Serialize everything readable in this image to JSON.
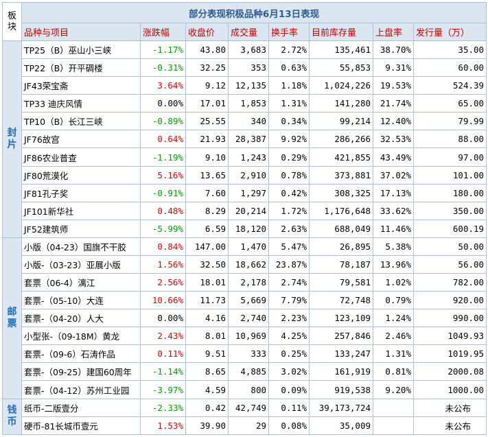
{
  "title": "部分表现积极品种6月13日表现",
  "corner_label": "板块",
  "headers": [
    "品种与项目",
    "涨跌幅",
    "收盘价",
    "成交量",
    "换手率",
    "目前库存量",
    "上盘率",
    "发行量（万）"
  ],
  "sections": [
    {
      "name": "封片",
      "rows": [
        {
          "name": "TP25（B）巫山小三峡",
          "change": "-1.17%",
          "trend": "down",
          "close": "43.80",
          "volume": "3,683",
          "turnover": "2.72%",
          "stock": "135,461",
          "rate": "38.70%",
          "issue": "35.00"
        },
        {
          "name": "TP22（B）开平碉楼",
          "change": "-0.31%",
          "trend": "down",
          "close": "32.25",
          "volume": "353",
          "turnover": "0.63%",
          "stock": "55,853",
          "rate": "9.31%",
          "issue": "60.00"
        },
        {
          "name": "JF43荣宝斋",
          "change": "3.64%",
          "trend": "up",
          "close": "9.12",
          "volume": "12,135",
          "turnover": "1.18%",
          "stock": "1,024,226",
          "rate": "19.53%",
          "issue": "524.39"
        },
        {
          "name": "TP33 迪庆风情",
          "change": "0.00%",
          "trend": "flat",
          "close": "17.01",
          "volume": "1,853",
          "turnover": "1.31%",
          "stock": "141,280",
          "rate": "21.74%",
          "issue": "65.00"
        },
        {
          "name": "TP10（B）长江三峡",
          "change": "-0.89%",
          "trend": "down",
          "close": "25.55",
          "volume": "340",
          "turnover": "0.34%",
          "stock": "99,214",
          "rate": "12.40%",
          "issue": "79.99"
        },
        {
          "name": "JF76故宫",
          "change": "0.64%",
          "trend": "up",
          "close": "21.93",
          "volume": "28,387",
          "turnover": "9.92%",
          "stock": "286,266",
          "rate": "32.53%",
          "issue": "88.00"
        },
        {
          "name": "JF86农业普查",
          "change": "-1.19%",
          "trend": "down",
          "close": "9.10",
          "volume": "1,243",
          "turnover": "0.29%",
          "stock": "421,855",
          "rate": "43.49%",
          "issue": "97.00"
        },
        {
          "name": "JF80荒漠化",
          "change": "5.16%",
          "trend": "up",
          "close": "13.65",
          "volume": "2,910",
          "turnover": "0.78%",
          "stock": "373,881",
          "rate": "37.02%",
          "issue": "101.00"
        },
        {
          "name": "JF81孔子奖",
          "change": "-0.91%",
          "trend": "down",
          "close": "7.60",
          "volume": "1,297",
          "turnover": "0.42%",
          "stock": "308,325",
          "rate": "17.13%",
          "issue": "180.00"
        },
        {
          "name": "JF101新华社",
          "change": "0.48%",
          "trend": "up",
          "close": "8.29",
          "volume": "20,214",
          "turnover": "1.72%",
          "stock": "1,176,648",
          "rate": "33.62%",
          "issue": "350.00"
        },
        {
          "name": "JF52建筑师",
          "change": "-5.99%",
          "trend": "down",
          "close": "6.59",
          "volume": "18,120",
          "turnover": "2.63%",
          "stock": "688,049",
          "rate": "11.46%",
          "issue": "600.19"
        }
      ]
    },
    {
      "name": "邮票",
      "rows": [
        {
          "name": "小版（04-23）国旗不干胶",
          "change": "0.84%",
          "trend": "up",
          "close": "147.00",
          "volume": "1,470",
          "turnover": "5.47%",
          "stock": "26,895",
          "rate": "5.38%",
          "issue": "50.00"
        },
        {
          "name": "小版-（03-23）亚展小版",
          "change": "1.56%",
          "trend": "up",
          "close": "32.50",
          "volume": "18,662",
          "turnover": "23.87%",
          "stock": "78,187",
          "rate": "13.96%",
          "issue": "56.00"
        },
        {
          "name": "套票（06-4）漓江",
          "change": "2.56%",
          "trend": "up",
          "close": "18.01",
          "volume": "2,178",
          "turnover": "2.74%",
          "stock": "79,581",
          "rate": "1.02%",
          "issue": "782.00"
        },
        {
          "name": "套票-（05-10）大连",
          "change": "10.66%",
          "trend": "up",
          "close": "11.73",
          "volume": "5,669",
          "turnover": "7.79%",
          "stock": "72,748",
          "rate": "0.79%",
          "issue": "920.00"
        },
        {
          "name": "套票-（04-20）人大",
          "change": "0.00%",
          "trend": "flat",
          "close": "4.16",
          "volume": "2,740",
          "turnover": "2.23%",
          "stock": "123,109",
          "rate": "1.24%",
          "issue": "990.00"
        },
        {
          "name": "小型张-（09-18M）黄龙",
          "change": "2.43%",
          "trend": "up",
          "close": "8.01",
          "volume": "10,969",
          "turnover": "4.25%",
          "stock": "257,846",
          "rate": "2.46%",
          "issue": "1049.93"
        },
        {
          "name": "套票-（09-6）石涛作品",
          "change": "0.11%",
          "trend": "up",
          "close": "9.51",
          "volume": "333",
          "turnover": "0.25%",
          "stock": "133,247",
          "rate": "1.31%",
          "issue": "1019.95"
        },
        {
          "name": "套票-（09-25）建国60周年",
          "change": "-1.14%",
          "trend": "down",
          "close": "8.65",
          "volume": "4,885",
          "turnover": "3.02%",
          "stock": "161,919",
          "rate": "0.81%",
          "issue": "2000.08"
        },
        {
          "name": "套票-（04-12）苏州工业园",
          "change": "-3.97%",
          "trend": "down",
          "close": "4.59",
          "volume": "800",
          "turnover": "0.09%",
          "stock": "919,538",
          "rate": "9.20%",
          "issue": "1000.00"
        }
      ]
    },
    {
      "name": "钱币",
      "rows": [
        {
          "name": "纸币-二版壹分",
          "change": "-2.33%",
          "trend": "down",
          "close": "0.42",
          "volume": "42,749",
          "turnover": "0.11%",
          "stock": "39,173,724",
          "rate": "",
          "issue": "未公布"
        },
        {
          "name": "硬币-81长城币壹元",
          "change": "1.53%",
          "trend": "up",
          "close": "39.90",
          "volume": "29",
          "turnover": "0.08%",
          "stock": "35,009",
          "rate": "",
          "issue": "未公布"
        }
      ]
    }
  ]
}
